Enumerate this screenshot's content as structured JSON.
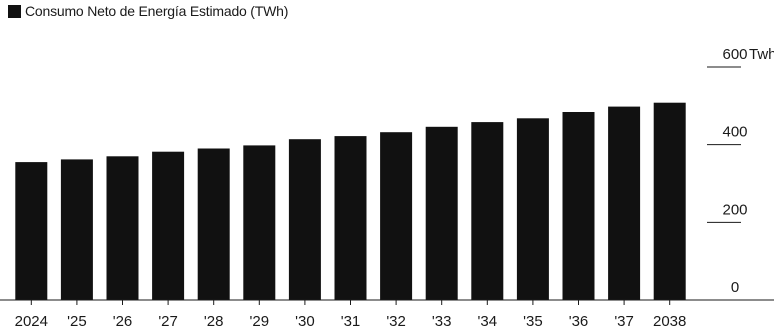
{
  "chart_data": {
    "type": "bar",
    "legend": [
      {
        "label": "Consumo Neto de Energía Estimado (TWh)",
        "color": "#111111"
      }
    ],
    "categories": [
      "2024",
      "'25",
      "'26",
      "'27",
      "'28",
      "'29",
      "'30",
      "'31",
      "'32",
      "'33",
      "'34",
      "'35",
      "'36",
      "'37",
      "2038"
    ],
    "values": [
      355,
      362,
      370,
      382,
      390,
      398,
      414,
      422,
      432,
      446,
      458,
      468,
      484,
      498,
      508
    ],
    "ylim": [
      0,
      600
    ],
    "yticks": [
      {
        "value": 0,
        "label": "0"
      },
      {
        "value": 200,
        "label": "200"
      },
      {
        "value": 400,
        "label": "400"
      },
      {
        "value": 600,
        "label": "600"
      }
    ],
    "yunit": "Twh",
    "xlabel": "",
    "ylabel": "",
    "grid": false,
    "legend_position": "top-left",
    "bar_color": "#111111"
  }
}
